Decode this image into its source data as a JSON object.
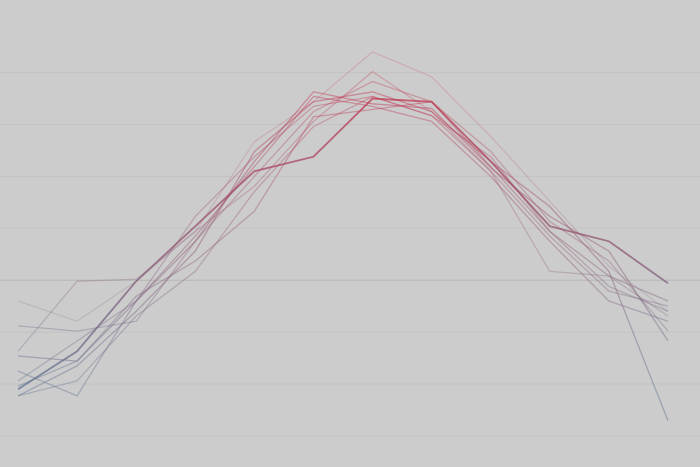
{
  "chart_data": {
    "type": "line",
    "categories": [
      null,
      null,
      null,
      null,
      null,
      null,
      null,
      null,
      null,
      null,
      null,
      null
    ],
    "series": [
      {
        "values": [
          0.9,
          1.63,
          2.98,
          4.04,
          5.1,
          5.38,
          6.5,
          6.44,
          5.29,
          4.04,
          3.75,
          2.94
        ],
        "opacity": 0.75
      },
      {
        "values": [
          1.54,
          1.44,
          2.6,
          3.75,
          5.29,
          6.63,
          6.4,
          6.31,
          5.17,
          4.23,
          3.56,
          1.83
        ],
        "opacity": 0.45
      },
      {
        "values": [
          0.77,
          1.35,
          2.4,
          3.56,
          5.48,
          6.44,
          6.63,
          6.25,
          5.29,
          4.42,
          3.17,
          0.29
        ],
        "opacity": 0.45
      },
      {
        "values": [
          2.12,
          2.02,
          2.21,
          3.75,
          5.0,
          6.25,
          6.83,
          6.44,
          5.48,
          4.13,
          3.37,
          2.02
        ],
        "opacity": 0.35
      },
      {
        "values": [
          2.6,
          2.21,
          2.98,
          3.94,
          5.67,
          6.44,
          7.4,
          6.92,
          5.77,
          4.52,
          3.27,
          2.4
        ],
        "opacity": 0.2
      },
      {
        "values": [
          1.25,
          0.77,
          2.6,
          3.85,
          5.19,
          6.54,
          6.35,
          6.06,
          5.0,
          3.75,
          2.6,
          2.21
        ],
        "opacity": 0.4
      },
      {
        "values": [
          1.06,
          1.83,
          2.6,
          4.23,
          5.38,
          6.35,
          6.54,
          6.17,
          5.1,
          3.85,
          2.79,
          2.5
        ],
        "opacity": 0.35
      },
      {
        "values": [
          1.63,
          2.98,
          3.02,
          3.94,
          4.81,
          6.06,
          7.02,
          6.25,
          5.1,
          3.17,
          3.08,
          2.31
        ],
        "opacity": 0.3
      },
      {
        "values": [
          0.96,
          1.44,
          2.69,
          3.37,
          4.33,
          6.15,
          6.29,
          6.44,
          5.19,
          3.94,
          3.08,
          2.6
        ],
        "opacity": 0.4
      },
      {
        "values": [
          0.77,
          1.06,
          2.31,
          3.17,
          4.71,
          5.96,
          6.54,
          6.17,
          5.38,
          3.94,
          2.88,
          2.4
        ],
        "opacity": 0.35
      }
    ],
    "color_low": "#5f7290",
    "color_high": "#c8304a",
    "ylim": [
      -0.6,
      8.4
    ],
    "yticks": [
      0,
      1,
      2,
      3,
      4,
      5,
      6,
      7
    ],
    "grid": true,
    "baseline": 3
  }
}
